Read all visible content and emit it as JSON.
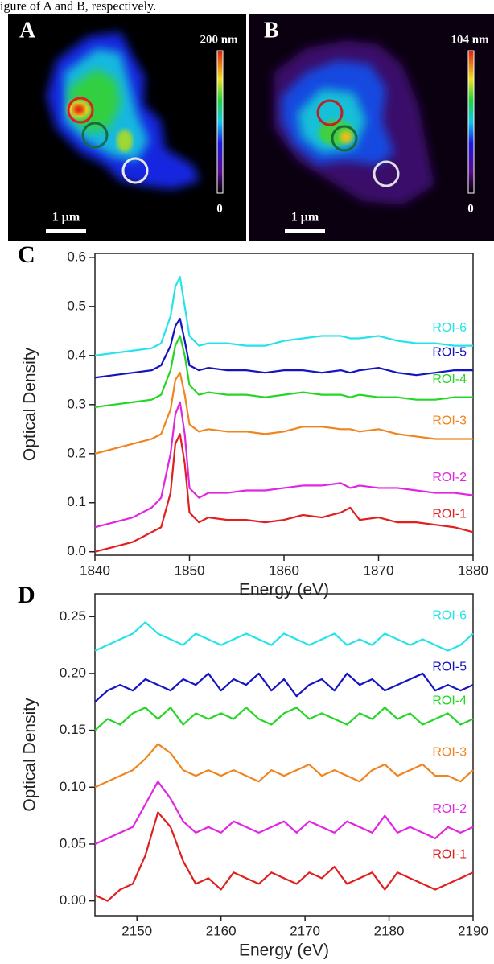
{
  "caption_fragment": "igure of A and B, respectively.",
  "images": [
    {
      "label": "A",
      "colorbar_max": "200 nm",
      "colorbar_min": "0",
      "scale_bar": "1 μm"
    },
    {
      "label": "B",
      "colorbar_max": "104 nm",
      "colorbar_min": "0",
      "scale_bar": "1 μm"
    }
  ],
  "chart_data": [
    {
      "type": "line",
      "panel": "C",
      "xlabel": "Energy (eV)",
      "ylabel": "Optical Density",
      "x": [
        1840,
        1842,
        1844,
        1846,
        1847,
        1848,
        1848.5,
        1849,
        1849.5,
        1850,
        1851,
        1852,
        1854,
        1856,
        1858,
        1860,
        1862,
        1864,
        1866,
        1867,
        1868,
        1870,
        1872,
        1874,
        1876,
        1878,
        1880
      ],
      "xlim": [
        1840,
        1880
      ],
      "xticks": [
        1840,
        1850,
        1860,
        1870,
        1880
      ],
      "ylim": [
        -0.007,
        0.608
      ],
      "yticks": [
        {
          "value": 0,
          "label": "0.0"
        },
        0.1,
        0.2,
        0.3,
        0.4,
        0.5,
        0.6
      ],
      "series": [
        {
          "name": "ROI-1",
          "color": "#e01f1f",
          "values": [
            0.0,
            0.01,
            0.02,
            0.04,
            0.05,
            0.12,
            0.22,
            0.24,
            0.18,
            0.08,
            0.06,
            0.07,
            0.065,
            0.065,
            0.06,
            0.065,
            0.075,
            0.07,
            0.08,
            0.09,
            0.065,
            0.07,
            0.06,
            0.06,
            0.055,
            0.05,
            0.04
          ]
        },
        {
          "name": "ROI-2",
          "color": "#e026e0",
          "values": [
            0.05,
            0.06,
            0.07,
            0.09,
            0.11,
            0.2,
            0.28,
            0.305,
            0.24,
            0.13,
            0.11,
            0.12,
            0.12,
            0.125,
            0.125,
            0.13,
            0.135,
            0.135,
            0.14,
            0.13,
            0.135,
            0.13,
            0.13,
            0.125,
            0.12,
            0.12,
            0.115
          ]
        },
        {
          "name": "ROI-3",
          "color": "#f0841f",
          "values": [
            0.2,
            0.21,
            0.22,
            0.23,
            0.24,
            0.29,
            0.35,
            0.365,
            0.32,
            0.26,
            0.245,
            0.25,
            0.245,
            0.245,
            0.24,
            0.245,
            0.255,
            0.255,
            0.25,
            0.25,
            0.245,
            0.25,
            0.24,
            0.235,
            0.23,
            0.23,
            0.23
          ]
        },
        {
          "name": "ROI-4",
          "color": "#26d626",
          "values": [
            0.295,
            0.3,
            0.305,
            0.31,
            0.32,
            0.37,
            0.42,
            0.44,
            0.4,
            0.34,
            0.32,
            0.325,
            0.32,
            0.32,
            0.315,
            0.32,
            0.325,
            0.32,
            0.32,
            0.315,
            0.32,
            0.315,
            0.315,
            0.31,
            0.31,
            0.315,
            0.315
          ]
        },
        {
          "name": "ROI-5",
          "color": "#1414c0",
          "values": [
            0.355,
            0.36,
            0.365,
            0.37,
            0.38,
            0.42,
            0.46,
            0.475,
            0.43,
            0.38,
            0.37,
            0.375,
            0.37,
            0.37,
            0.365,
            0.37,
            0.37,
            0.365,
            0.37,
            0.365,
            0.37,
            0.375,
            0.365,
            0.36,
            0.365,
            0.37,
            0.37
          ]
        },
        {
          "name": "ROI-6",
          "color": "#26e2ea",
          "values": [
            0.4,
            0.405,
            0.41,
            0.415,
            0.425,
            0.48,
            0.54,
            0.56,
            0.5,
            0.44,
            0.42,
            0.425,
            0.425,
            0.42,
            0.42,
            0.43,
            0.435,
            0.44,
            0.44,
            0.435,
            0.435,
            0.44,
            0.43,
            0.425,
            0.425,
            0.42,
            0.42
          ]
        }
      ]
    },
    {
      "type": "line",
      "panel": "D",
      "xlabel": "Energy (eV)",
      "ylabel": "Optical Density",
      "x": [
        2145,
        2146.5,
        2148,
        2149.5,
        2151,
        2152.5,
        2154,
        2155.5,
        2157,
        2158.5,
        2160,
        2161.5,
        2163,
        2164.5,
        2166,
        2167.5,
        2169,
        2170.5,
        2172,
        2173.5,
        2175,
        2176.5,
        2178,
        2179.5,
        2181,
        2182.5,
        2184,
        2185.5,
        2187,
        2188.5,
        2190
      ],
      "xlim": [
        2145,
        2190
      ],
      "xticks": [
        2150,
        2160,
        2170,
        2180,
        2190
      ],
      "ylim": [
        -0.013,
        0.27
      ],
      "yticks": [
        {
          "value": 0,
          "label": "0.00"
        },
        0.05,
        {
          "value": 0.1,
          "label": "0.10"
        },
        0.15,
        {
          "value": 0.2,
          "label": "0.20"
        },
        0.25
      ],
      "series": [
        {
          "name": "ROI-1",
          "color": "#e01f1f",
          "values": [
            0.005,
            0.0,
            0.01,
            0.015,
            0.04,
            0.078,
            0.065,
            0.035,
            0.015,
            0.02,
            0.01,
            0.025,
            0.02,
            0.015,
            0.025,
            0.02,
            0.015,
            0.025,
            0.02,
            0.03,
            0.015,
            0.02,
            0.025,
            0.01,
            0.025,
            0.02,
            0.015,
            0.01,
            0.015,
            0.02,
            0.025
          ]
        },
        {
          "name": "ROI-2",
          "color": "#e026e0",
          "values": [
            0.05,
            0.055,
            0.06,
            0.065,
            0.085,
            0.105,
            0.09,
            0.07,
            0.06,
            0.065,
            0.06,
            0.07,
            0.065,
            0.06,
            0.065,
            0.07,
            0.06,
            0.07,
            0.065,
            0.06,
            0.07,
            0.065,
            0.06,
            0.075,
            0.06,
            0.065,
            0.06,
            0.055,
            0.065,
            0.06,
            0.065
          ]
        },
        {
          "name": "ROI-3",
          "color": "#f0841f",
          "values": [
            0.1,
            0.105,
            0.11,
            0.115,
            0.125,
            0.138,
            0.13,
            0.115,
            0.11,
            0.115,
            0.11,
            0.115,
            0.11,
            0.105,
            0.115,
            0.11,
            0.115,
            0.12,
            0.11,
            0.115,
            0.11,
            0.105,
            0.115,
            0.12,
            0.11,
            0.115,
            0.12,
            0.11,
            0.11,
            0.105,
            0.115
          ]
        },
        {
          "name": "ROI-4",
          "color": "#26d626",
          "values": [
            0.15,
            0.16,
            0.155,
            0.165,
            0.17,
            0.16,
            0.17,
            0.155,
            0.165,
            0.16,
            0.165,
            0.16,
            0.17,
            0.16,
            0.155,
            0.165,
            0.17,
            0.16,
            0.165,
            0.16,
            0.155,
            0.165,
            0.16,
            0.17,
            0.16,
            0.165,
            0.155,
            0.16,
            0.165,
            0.155,
            0.16
          ]
        },
        {
          "name": "ROI-5",
          "color": "#1414c0",
          "values": [
            0.175,
            0.185,
            0.19,
            0.185,
            0.195,
            0.19,
            0.185,
            0.195,
            0.19,
            0.2,
            0.185,
            0.195,
            0.19,
            0.2,
            0.185,
            0.195,
            0.18,
            0.19,
            0.195,
            0.185,
            0.2,
            0.19,
            0.195,
            0.185,
            0.19,
            0.195,
            0.2,
            0.185,
            0.19,
            0.185,
            0.19
          ]
        },
        {
          "name": "ROI-6",
          "color": "#26e2ea",
          "values": [
            0.22,
            0.225,
            0.23,
            0.235,
            0.245,
            0.235,
            0.23,
            0.225,
            0.235,
            0.23,
            0.225,
            0.23,
            0.235,
            0.23,
            0.225,
            0.235,
            0.23,
            0.225,
            0.23,
            0.235,
            0.225,
            0.23,
            0.225,
            0.235,
            0.23,
            0.225,
            0.23,
            0.225,
            0.22,
            0.225,
            0.235
          ]
        }
      ]
    }
  ]
}
